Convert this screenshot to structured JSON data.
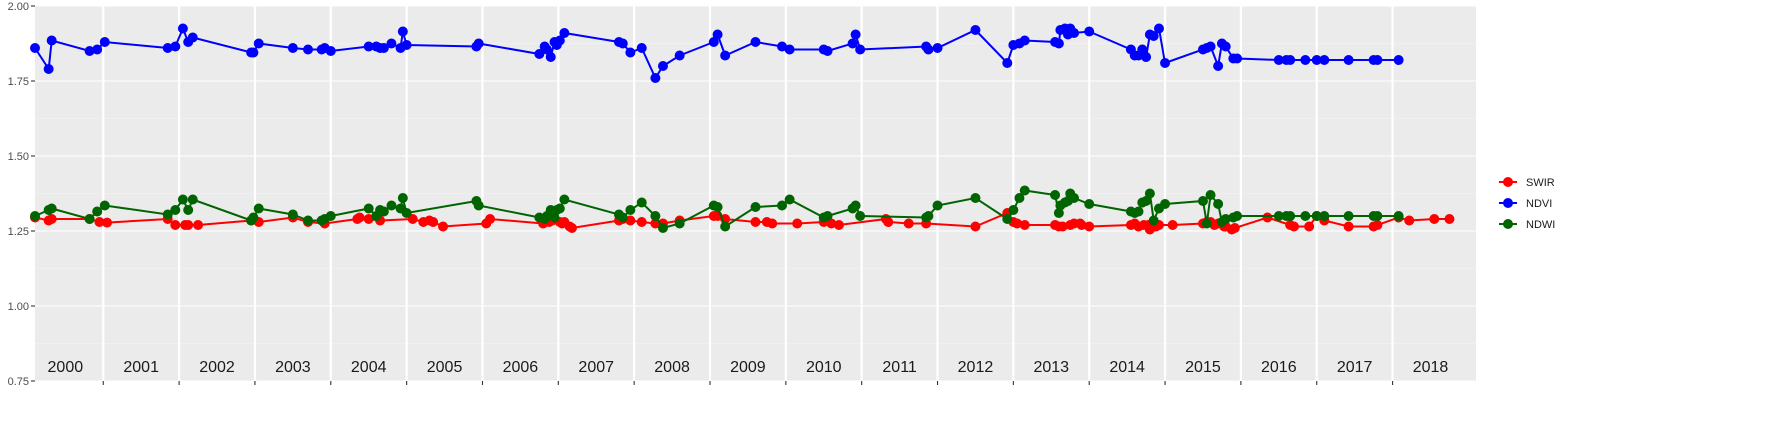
{
  "chart_data": {
    "type": "line",
    "title": "",
    "xlabel": "",
    "ylabel": "",
    "xlim": [
      1999.6,
      2018.6
    ],
    "ylim": [
      0.75,
      2.0
    ],
    "y_ticks": [
      "0.75",
      "1.00",
      "1.25",
      "1.50",
      "1.75",
      "2.00"
    ],
    "y_tick_values": [
      0.75,
      1.0,
      1.25,
      1.5,
      1.75,
      2.0
    ],
    "year_labels": [
      "2000",
      "2001",
      "2002",
      "2003",
      "2004",
      "2005",
      "2006",
      "2007",
      "2008",
      "2009",
      "2010",
      "2011",
      "2012",
      "2013",
      "2014",
      "2015",
      "2016",
      "2017",
      "2018"
    ],
    "grid": true,
    "legend_position": "right",
    "background": "#ebebeb",
    "series": [
      {
        "name": "SWIR",
        "color": "#ff0000",
        "x": [
          1999.6,
          1999.78,
          1999.82,
          2000.32,
          2000.45,
          2000.55,
          2001.35,
          2001.45,
          2001.58,
          2001.62,
          2001.75,
          2002.45,
          2002.48,
          2002.55,
          2003.0,
          2003.2,
          2003.42,
          2003.85,
          2003.88,
          2004.0,
          2004.15,
          2004.58,
          2004.72,
          2004.8,
          2004.85,
          2004.98,
          2005.55,
          2005.6,
          2006.3,
          2006.38,
          2006.42,
          2006.52,
          2006.55,
          2006.58,
          2006.65,
          2006.68,
          2007.3,
          2007.35,
          2007.45,
          2007.6,
          2007.78,
          2007.88,
          2008.1,
          2008.55,
          2008.6,
          2008.7,
          2009.1,
          2009.25,
          2009.32,
          2009.65,
          2010.0,
          2010.1,
          2010.2,
          2010.82,
          2010.85,
          2011.12,
          2011.35,
          2012.0,
          2012.42,
          2012.5,
          2012.55,
          2012.65,
          2013.05,
          2013.1,
          2013.15,
          2013.25,
          2013.3,
          2013.38,
          2013.4,
          2013.5,
          2014.05,
          2014.1,
          2014.15,
          2014.22,
          2014.28,
          2014.3,
          2014.38,
          2014.42,
          2014.6,
          2015.0,
          2015.05,
          2015.1,
          2015.15,
          2015.2,
          2015.28,
          2015.3,
          2015.38,
          2015.42,
          2015.85,
          2016.15,
          2016.2,
          2016.4,
          2016.5,
          2016.6,
          2016.92,
          2017.25,
          2017.3,
          2017.58,
          2017.72,
          2018.05,
          2018.25
        ],
        "y": [
          1.295,
          1.285,
          1.29,
          1.29,
          1.28,
          1.278,
          1.29,
          1.27,
          1.27,
          1.27,
          1.27,
          1.285,
          1.29,
          1.28,
          1.295,
          1.28,
          1.275,
          1.29,
          1.295,
          1.29,
          1.285,
          1.29,
          1.28,
          1.285,
          1.28,
          1.265,
          1.275,
          1.29,
          1.275,
          1.28,
          1.285,
          1.28,
          1.275,
          1.28,
          1.265,
          1.26,
          1.285,
          1.29,
          1.285,
          1.28,
          1.275,
          1.275,
          1.285,
          1.3,
          1.3,
          1.29,
          1.28,
          1.28,
          1.275,
          1.275,
          1.28,
          1.275,
          1.27,
          1.29,
          1.28,
          1.275,
          1.275,
          1.265,
          1.31,
          1.28,
          1.275,
          1.27,
          1.27,
          1.265,
          1.265,
          1.27,
          1.275,
          1.275,
          1.27,
          1.265,
          1.27,
          1.275,
          1.265,
          1.27,
          1.27,
          1.255,
          1.265,
          1.27,
          1.27,
          1.275,
          1.28,
          1.28,
          1.27,
          1.275,
          1.265,
          1.265,
          1.255,
          1.26,
          1.295,
          1.27,
          1.265,
          1.265,
          1.3,
          1.285,
          1.265,
          1.265,
          1.27,
          1.295,
          1.285,
          1.29,
          1.29
        ]
      },
      {
        "name": "NDVI",
        "color": "#0000ff",
        "x": [
          1999.6,
          1999.78,
          1999.82,
          2000.32,
          2000.42,
          2000.52,
          2001.35,
          2001.45,
          2001.55,
          2001.62,
          2001.68,
          2002.45,
          2002.48,
          2002.55,
          2003.0,
          2003.2,
          2003.38,
          2003.42,
          2003.5,
          2004.0,
          2004.1,
          2004.15,
          2004.2,
          2004.3,
          2004.42,
          2004.45,
          2004.5,
          2005.42,
          2005.45,
          2006.25,
          2006.32,
          2006.35,
          2006.4,
          2006.45,
          2006.48,
          2006.52,
          2006.58,
          2007.3,
          2007.35,
          2007.45,
          2007.6,
          2007.78,
          2007.88,
          2008.1,
          2008.55,
          2008.6,
          2008.7,
          2009.1,
          2009.45,
          2009.55,
          2010.0,
          2010.05,
          2010.38,
          2010.42,
          2010.48,
          2011.35,
          2011.38,
          2011.5,
          2012.0,
          2012.42,
          2012.5,
          2012.58,
          2012.65,
          2013.05,
          2013.1,
          2013.12,
          2013.18,
          2013.22,
          2013.25,
          2013.3,
          2013.5,
          2014.05,
          2014.1,
          2014.15,
          2014.2,
          2014.25,
          2014.3,
          2014.35,
          2014.42,
          2014.5,
          2015.0,
          2015.05,
          2015.1,
          2015.2,
          2015.25,
          2015.3,
          2015.4,
          2015.45,
          2016.0,
          2016.1,
          2016.15,
          2016.35,
          2016.5,
          2016.6,
          2016.92,
          2017.25,
          2017.3,
          2017.58
        ],
        "y": [
          1.86,
          1.79,
          1.885,
          1.85,
          1.855,
          1.88,
          1.86,
          1.865,
          1.925,
          1.88,
          1.895,
          1.845,
          1.845,
          1.875,
          1.86,
          1.855,
          1.855,
          1.86,
          1.85,
          1.865,
          1.865,
          1.86,
          1.86,
          1.875,
          1.86,
          1.915,
          1.87,
          1.865,
          1.875,
          1.84,
          1.865,
          1.855,
          1.83,
          1.88,
          1.87,
          1.885,
          1.91,
          1.88,
          1.875,
          1.845,
          1.86,
          1.76,
          1.8,
          1.835,
          1.88,
          1.905,
          1.835,
          1.88,
          1.865,
          1.855,
          1.855,
          1.85,
          1.875,
          1.905,
          1.855,
          1.865,
          1.855,
          1.86,
          1.92,
          1.81,
          1.87,
          1.875,
          1.885,
          1.88,
          1.875,
          1.92,
          1.925,
          1.905,
          1.925,
          1.91,
          1.915,
          1.855,
          1.835,
          1.835,
          1.855,
          1.83,
          1.905,
          1.9,
          1.925,
          1.81,
          1.855,
          1.86,
          1.865,
          1.8,
          1.875,
          1.865,
          1.825,
          1.825,
          1.82,
          1.82,
          1.82,
          1.82,
          1.82,
          1.82,
          1.82,
          1.82,
          1.82,
          1.82
        ]
      },
      {
        "name": "NDWI",
        "color": "#006400",
        "x": [
          1999.6,
          1999.78,
          1999.82,
          2000.32,
          2000.42,
          2000.52,
          2001.35,
          2001.45,
          2001.55,
          2001.62,
          2001.68,
          2002.45,
          2002.48,
          2002.55,
          2003.0,
          2003.2,
          2003.38,
          2003.42,
          2003.5,
          2004.0,
          2004.1,
          2004.15,
          2004.2,
          2004.3,
          2004.42,
          2004.45,
          2004.5,
          2005.42,
          2005.45,
          2006.25,
          2006.32,
          2006.35,
          2006.4,
          2006.45,
          2006.48,
          2006.52,
          2006.58,
          2007.3,
          2007.35,
          2007.45,
          2007.6,
          2007.78,
          2007.88,
          2008.1,
          2008.55,
          2008.6,
          2008.7,
          2009.1,
          2009.45,
          2009.55,
          2010.0,
          2010.05,
          2010.38,
          2010.42,
          2010.48,
          2011.35,
          2011.38,
          2011.5,
          2012.0,
          2012.42,
          2012.5,
          2012.58,
          2012.65,
          2013.05,
          2013.1,
          2013.12,
          2013.18,
          2013.22,
          2013.25,
          2013.3,
          2013.5,
          2014.05,
          2014.1,
          2014.15,
          2014.2,
          2014.25,
          2014.3,
          2014.35,
          2014.42,
          2014.5,
          2015.0,
          2015.05,
          2015.1,
          2015.2,
          2015.25,
          2015.3,
          2015.4,
          2015.45,
          2016.0,
          2016.1,
          2016.15,
          2016.35,
          2016.5,
          2016.6,
          2016.92,
          2017.25,
          2017.3,
          2017.58
        ],
        "y": [
          1.3,
          1.32,
          1.325,
          1.29,
          1.315,
          1.335,
          1.305,
          1.32,
          1.355,
          1.32,
          1.355,
          1.285,
          1.295,
          1.325,
          1.305,
          1.285,
          1.285,
          1.29,
          1.3,
          1.325,
          1.3,
          1.32,
          1.315,
          1.335,
          1.325,
          1.36,
          1.31,
          1.35,
          1.335,
          1.295,
          1.29,
          1.3,
          1.32,
          1.295,
          1.32,
          1.325,
          1.355,
          1.305,
          1.295,
          1.32,
          1.345,
          1.3,
          1.26,
          1.275,
          1.335,
          1.33,
          1.265,
          1.33,
          1.335,
          1.355,
          1.295,
          1.3,
          1.325,
          1.335,
          1.3,
          1.295,
          1.3,
          1.335,
          1.36,
          1.29,
          1.32,
          1.36,
          1.385,
          1.37,
          1.31,
          1.335,
          1.345,
          1.35,
          1.375,
          1.36,
          1.34,
          1.315,
          1.31,
          1.315,
          1.345,
          1.35,
          1.375,
          1.285,
          1.325,
          1.34,
          1.35,
          1.275,
          1.37,
          1.34,
          1.28,
          1.29,
          1.295,
          1.3,
          1.3,
          1.3,
          1.3,
          1.3,
          1.3,
          1.3,
          1.3,
          1.3,
          1.3,
          1.3
        ]
      }
    ]
  }
}
